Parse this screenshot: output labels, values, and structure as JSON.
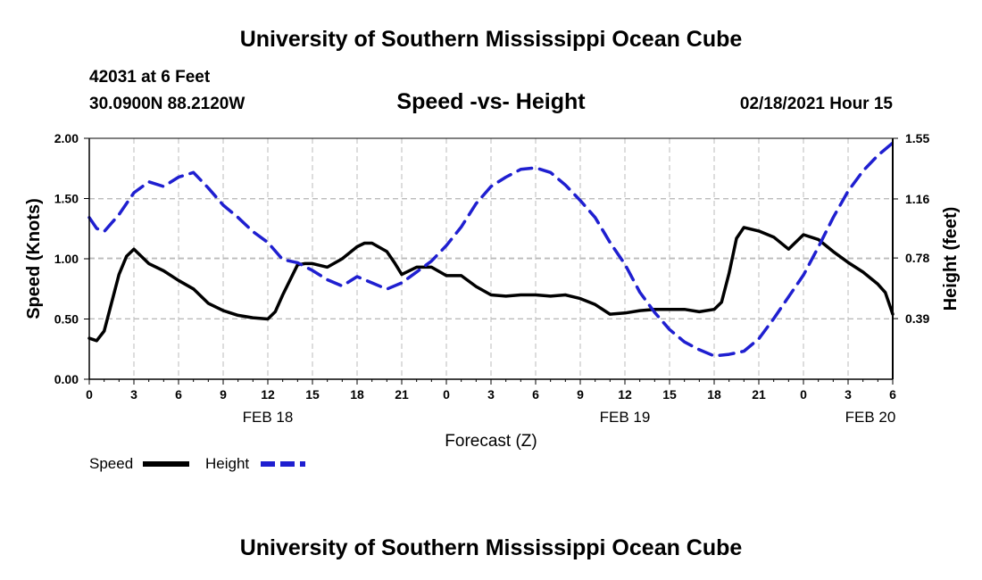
{
  "header": {
    "title": "University of Southern Mississippi Ocean Cube",
    "station": "42031 at 6 Feet",
    "coordinates": "30.0900N 88.2120W",
    "subtitle": "Speed -vs- Height",
    "datetime": "02/18/2021 Hour 15"
  },
  "footer": {
    "title": "University of Southern Mississippi Ocean Cube"
  },
  "colors": {
    "speed": "#000000",
    "height": "#1f1fd0",
    "grid": "#bbbbbb"
  },
  "chart_data": {
    "type": "line",
    "title": "Speed -vs- Height",
    "xlabel": "Forecast (Z)",
    "ylabel": "Speed (Knots)",
    "ylabel_right": "Height (feet)",
    "xlim": [
      0,
      54
    ],
    "ylim": [
      0,
      2.0
    ],
    "ylim_right": [
      0,
      1.55
    ],
    "grid": true,
    "x_ticks": [
      {
        "x": 0,
        "label": "0"
      },
      {
        "x": 3,
        "label": "3"
      },
      {
        "x": 6,
        "label": "6"
      },
      {
        "x": 9,
        "label": "9"
      },
      {
        "x": 12,
        "label": "12"
      },
      {
        "x": 15,
        "label": "15"
      },
      {
        "x": 18,
        "label": "18"
      },
      {
        "x": 21,
        "label": "21"
      },
      {
        "x": 24,
        "label": "0"
      },
      {
        "x": 27,
        "label": "3"
      },
      {
        "x": 30,
        "label": "6"
      },
      {
        "x": 33,
        "label": "9"
      },
      {
        "x": 36,
        "label": "12"
      },
      {
        "x": 39,
        "label": "15"
      },
      {
        "x": 42,
        "label": "18"
      },
      {
        "x": 45,
        "label": "21"
      },
      {
        "x": 48,
        "label": "0"
      },
      {
        "x": 51,
        "label": "3"
      },
      {
        "x": 54,
        "label": "6"
      }
    ],
    "date_labels": [
      {
        "x": 12,
        "label": "FEB 18"
      },
      {
        "x": 36,
        "label": "FEB 19"
      },
      {
        "x": 52.5,
        "label": "FEB 20"
      }
    ],
    "y_ticks": [
      {
        "value": 0,
        "label": "0.00"
      },
      {
        "value": 0.5,
        "label": "0.50"
      },
      {
        "value": 1.0,
        "label": "1.00"
      },
      {
        "value": 1.5,
        "label": "1.50"
      },
      {
        "value": 2.0,
        "label": "2.00"
      }
    ],
    "y_ticks_right": [
      {
        "value": 0.39,
        "label": "0.39"
      },
      {
        "value": 0.78,
        "label": "0.78"
      },
      {
        "value": 1.16,
        "label": "1.16"
      },
      {
        "value": 1.55,
        "label": "1.55"
      }
    ],
    "legend": [
      {
        "name": "Speed",
        "style": "solid"
      },
      {
        "name": "Height",
        "style": "dashed"
      }
    ],
    "series": [
      {
        "name": "Speed",
        "axis": "left",
        "style": "solid",
        "x": [
          0,
          0.5,
          1,
          2,
          2.5,
          3,
          4,
          5,
          6,
          7,
          8,
          9,
          10,
          11,
          12,
          12.5,
          13,
          14,
          14.5,
          15,
          16,
          17,
          18,
          18.5,
          19,
          20,
          20.5,
          21,
          22,
          23,
          24,
          25,
          26,
          27,
          28,
          29,
          30,
          31,
          32,
          33,
          34,
          35,
          36,
          37,
          38,
          39,
          40,
          41,
          42,
          42.5,
          43,
          43.5,
          44,
          45,
          46,
          47,
          48,
          49,
          50,
          51,
          52,
          53,
          53.5,
          54
        ],
        "values": [
          0.34,
          0.32,
          0.4,
          0.87,
          1.02,
          1.08,
          0.96,
          0.9,
          0.82,
          0.75,
          0.63,
          0.57,
          0.53,
          0.51,
          0.5,
          0.56,
          0.7,
          0.95,
          0.96,
          0.96,
          0.93,
          1.0,
          1.1,
          1.13,
          1.13,
          1.06,
          0.97,
          0.87,
          0.93,
          0.93,
          0.86,
          0.86,
          0.77,
          0.7,
          0.69,
          0.7,
          0.7,
          0.69,
          0.7,
          0.67,
          0.62,
          0.54,
          0.55,
          0.57,
          0.58,
          0.58,
          0.58,
          0.56,
          0.58,
          0.64,
          0.88,
          1.17,
          1.26,
          1.23,
          1.18,
          1.08,
          1.2,
          1.16,
          1.06,
          0.97,
          0.89,
          0.79,
          0.72,
          0.54
        ]
      },
      {
        "name": "Height",
        "axis": "right",
        "style": "dashed",
        "x": [
          0,
          0.5,
          1,
          2,
          3,
          4,
          5,
          6,
          7,
          8,
          9,
          10,
          11,
          12,
          13,
          14,
          15,
          16,
          17,
          18,
          19,
          20,
          21,
          22,
          23,
          24,
          25,
          26,
          27,
          28,
          29,
          30,
          31,
          32,
          33,
          34,
          35,
          36,
          37,
          38,
          39,
          40,
          41,
          42,
          43,
          44,
          45,
          46,
          47,
          48,
          49,
          50,
          51,
          52,
          53,
          54
        ],
        "values": [
          1.04,
          0.97,
          0.95,
          1.06,
          1.2,
          1.27,
          1.24,
          1.3,
          1.33,
          1.23,
          1.12,
          1.04,
          0.95,
          0.88,
          0.77,
          0.75,
          0.7,
          0.64,
          0.6,
          0.66,
          0.62,
          0.58,
          0.62,
          0.69,
          0.76,
          0.86,
          0.98,
          1.13,
          1.24,
          1.3,
          1.35,
          1.36,
          1.33,
          1.25,
          1.15,
          1.04,
          0.88,
          0.74,
          0.56,
          0.43,
          0.32,
          0.24,
          0.19,
          0.15,
          0.16,
          0.18,
          0.26,
          0.39,
          0.53,
          0.67,
          0.85,
          1.04,
          1.21,
          1.34,
          1.44,
          1.52
        ]
      }
    ]
  }
}
